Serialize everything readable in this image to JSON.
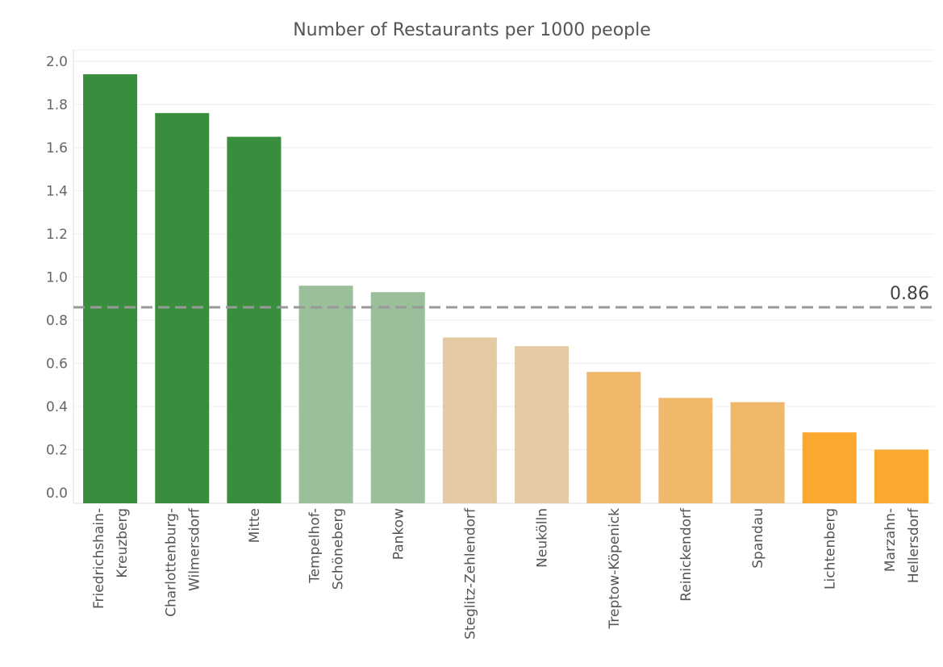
{
  "chart_data": {
    "type": "bar",
    "title": "Number of Restaurants per 1000 people",
    "xlabel": "",
    "ylabel": "",
    "ylim": [
      -0.05,
      2.05
    ],
    "yticks": [
      0.0,
      0.2,
      0.4,
      0.6,
      0.8,
      1.0,
      1.2,
      1.4,
      1.6,
      1.8,
      2.0
    ],
    "ytick_labels": [
      "0.0",
      "0.2",
      "0.4",
      "0.6",
      "0.8",
      "1.0",
      "1.2",
      "1.4",
      "1.6",
      "1.8",
      "2.0"
    ],
    "grid": "horizontal",
    "reference_line": {
      "value": 0.86,
      "label": "0.86",
      "color": "#999999",
      "style": "dashed"
    },
    "categories": [
      [
        "Friedrichshain-",
        "Kreuzberg"
      ],
      [
        "Charlottenburg-",
        "Wilmersdorf"
      ],
      [
        "Mitte"
      ],
      [
        "Tempelhof-",
        "Schöneberg"
      ],
      [
        "Pankow"
      ],
      [
        "Steglitz-Zehlendorf"
      ],
      [
        "Neukölln"
      ],
      [
        "Treptow-Köpenick"
      ],
      [
        "Reinickendorf"
      ],
      [
        "Spandau"
      ],
      [
        "Lichtenberg"
      ],
      [
        "Marzahn-",
        "Hellersdorf"
      ]
    ],
    "values": [
      1.94,
      1.76,
      1.65,
      0.96,
      0.93,
      0.72,
      0.68,
      0.56,
      0.44,
      0.42,
      0.28,
      0.2
    ],
    "colors": [
      "#388e3c",
      "#388e3c",
      "#388e3c",
      "#9abf9a",
      "#9abf9a",
      "#e4cba3",
      "#e4cba3",
      "#f0b86a",
      "#f0b86a",
      "#f0b86a",
      "#fba82e",
      "#fba82e"
    ],
    "grid_color": "#eeeeee",
    "axis_color": "#dddddd"
  }
}
